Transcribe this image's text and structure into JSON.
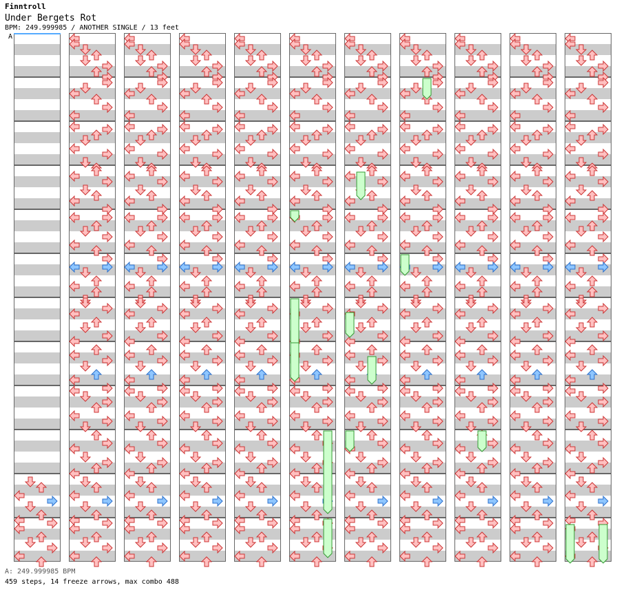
{
  "header": {
    "artist": "Finntroll",
    "title": "Under Bergets Rot",
    "meta": "BPM: 249.999985 / ANOTHER SINGLE / 13 feet",
    "marker": "A"
  },
  "footer": {
    "bpm_line": "A: 249.999985 BPM",
    "stats": "459 steps, 14 freeze arrows, max combo 488"
  },
  "colors": {
    "band": "#cccccc",
    "border": "#666666",
    "arrow_red_fill": "#ffc0c0",
    "arrow_red_stroke": "#cc3333",
    "arrow_blue_fill": "#8ec6ff",
    "arrow_blue_stroke": "#2a6fcc",
    "freeze_fill": "#ccffcc",
    "freeze_stroke": "#339933",
    "marker_line": "#55aaff"
  },
  "chart_data": {
    "type": "table",
    "columns": 11,
    "measures_per_column": 12,
    "lanes": [
      "left",
      "down",
      "up",
      "right"
    ],
    "notes": [
      [
        10,
        0,
        0,
        "r"
      ],
      [
        12,
        1,
        0,
        "r"
      ],
      [
        14,
        0,
        0,
        "r"
      ],
      [
        15,
        0,
        0,
        "r"
      ],
      [
        15,
        3,
        0,
        "r"
      ],
      [
        14,
        3,
        1,
        "r"
      ],
      [
        14,
        2,
        1,
        "r"
      ],
      [
        1,
        1,
        0,
        "r"
      ],
      [
        3,
        3,
        0,
        "r"
      ],
      [
        6,
        0,
        0,
        "r"
      ],
      [
        9,
        1,
        0,
        "r"
      ],
      [
        10,
        3,
        0,
        "r"
      ],
      [
        0,
        0,
        0,
        "r"
      ],
      [
        2,
        3,
        0,
        "r"
      ],
      [
        4,
        1,
        0,
        "r"
      ],
      [
        6,
        0,
        0,
        "r"
      ],
      [
        9,
        2,
        0,
        "r"
      ],
      [
        12,
        0,
        0,
        "r"
      ],
      [
        3,
        1,
        0,
        "b"
      ],
      [
        5,
        2,
        0,
        "r"
      ],
      [
        7,
        3,
        0,
        "r"
      ],
      [
        10,
        2,
        0,
        "r"
      ],
      [
        13,
        1,
        0,
        "r"
      ],
      [
        1,
        3,
        1,
        "r"
      ],
      [
        4,
        0,
        0,
        "r"
      ],
      [
        6,
        1,
        0,
        "r"
      ],
      [
        8,
        3,
        0,
        "r"
      ],
      [
        11,
        0,
        0,
        "r"
      ],
      [
        14,
        2,
        0,
        "r"
      ],
      [
        2,
        0,
        0,
        "r"
      ],
      [
        2,
        3,
        0,
        "r"
      ],
      [
        5,
        1,
        0,
        "r"
      ],
      [
        7,
        2,
        0,
        "r"
      ],
      [
        10,
        0,
        1,
        "r"
      ],
      [
        12,
        3,
        0,
        "r"
      ],
      [
        0,
        3,
        0,
        "r"
      ],
      [
        3,
        0,
        0,
        "b"
      ],
      [
        3,
        3,
        0,
        "b"
      ],
      [
        6,
        2,
        0,
        "r"
      ],
      [
        9,
        0,
        0,
        "r"
      ],
      [
        12,
        1,
        0,
        "b"
      ],
      [
        14,
        3,
        0,
        "r"
      ],
      [
        1,
        0,
        0,
        "r"
      ],
      [
        4,
        2,
        0,
        "r"
      ],
      [
        6,
        3,
        0,
        "b"
      ],
      [
        9,
        1,
        0,
        "r"
      ],
      [
        11,
        3,
        0,
        "r"
      ],
      [
        14,
        0,
        0,
        "b"
      ],
      [
        2,
        1,
        0,
        "b"
      ],
      [
        4,
        3,
        1,
        "r"
      ],
      [
        7,
        2,
        0,
        "r"
      ],
      [
        10,
        0,
        0,
        "r"
      ],
      [
        12,
        2,
        0,
        "r"
      ],
      [
        15,
        3,
        0,
        "r"
      ],
      [
        0,
        0,
        0,
        "r"
      ],
      [
        3,
        2,
        0,
        "r"
      ],
      [
        5,
        0,
        0,
        "r"
      ],
      [
        7,
        3,
        0,
        "r"
      ],
      [
        10,
        1,
        0,
        "r"
      ],
      [
        13,
        2,
        1,
        "r"
      ],
      [
        1,
        1,
        0,
        "r"
      ],
      [
        4,
        0,
        0,
        "r"
      ],
      [
        6,
        2,
        0,
        "r"
      ],
      [
        9,
        3,
        0,
        "r"
      ],
      [
        11,
        1,
        0,
        "r"
      ],
      [
        14,
        3,
        0,
        "r"
      ],
      [
        2,
        3,
        0,
        "r"
      ],
      [
        5,
        1,
        0,
        "r"
      ],
      [
        7,
        0,
        0,
        "r"
      ],
      [
        10,
        2,
        0,
        "r"
      ],
      [
        12,
        0,
        0,
        "r"
      ],
      [
        15,
        1,
        0,
        "r"
      ],
      [
        0,
        1,
        0,
        "r"
      ],
      [
        3,
        3,
        0,
        "r"
      ],
      [
        6,
        0,
        0,
        "r"
      ],
      [
        8,
        2,
        0,
        "r"
      ],
      [
        11,
        3,
        0,
        "r"
      ],
      [
        13,
        0,
        0,
        "r"
      ],
      [
        1,
        0,
        0,
        "r"
      ],
      [
        2,
        3,
        0,
        "r"
      ],
      [
        5,
        2,
        0,
        "b"
      ],
      [
        8,
        1,
        0,
        "r"
      ],
      [
        10,
        3,
        0,
        "r"
      ],
      [
        13,
        0,
        0,
        "r"
      ],
      [
        0,
        2,
        0,
        "r"
      ],
      [
        3,
        1,
        0,
        "r"
      ],
      [
        4,
        0,
        0,
        "r"
      ],
      [
        7,
        3,
        0,
        "r"
      ],
      [
        9,
        2,
        0,
        "r"
      ],
      [
        12,
        1,
        0,
        "r"
      ],
      [
        14,
        3,
        0,
        "r"
      ]
    ],
    "freeze_notes": [],
    "notes_by_measure": [
      [
        [
          0,
          0,
          "r"
        ],
        [
          2,
          0,
          "r"
        ],
        [
          4,
          1,
          "r"
        ],
        [
          6,
          2,
          "r"
        ],
        [
          8,
          1,
          "r"
        ],
        [
          10,
          3,
          "r"
        ],
        [
          12,
          2,
          "r"
        ],
        [
          14,
          3,
          "r"
        ]
      ],
      [
        [
          0,
          3,
          "r"
        ],
        [
          2,
          1,
          "r"
        ],
        [
          4,
          0,
          "r"
        ],
        [
          6,
          2,
          "r"
        ],
        [
          9,
          3,
          "r"
        ],
        [
          12,
          0,
          "r"
        ]
      ],
      [
        [
          0,
          0,
          "r"
        ],
        [
          1,
          3,
          "r"
        ],
        [
          3,
          2,
          "r"
        ],
        [
          5,
          1,
          "r"
        ],
        [
          8,
          0,
          "r"
        ],
        [
          10,
          3,
          "r"
        ],
        [
          13,
          1,
          "r"
        ],
        [
          15,
          2,
          "r"
        ]
      ],
      [
        [
          0,
          2,
          "r"
        ],
        [
          2,
          0,
          "r"
        ],
        [
          4,
          3,
          "r"
        ],
        [
          7,
          1,
          "r"
        ],
        [
          9,
          2,
          "r"
        ],
        [
          11,
          0,
          "r"
        ],
        [
          14,
          3,
          "r"
        ]
      ],
      [
        [
          1,
          0,
          "r"
        ],
        [
          1,
          3,
          "r"
        ],
        [
          4,
          2,
          "r"
        ],
        [
          6,
          1,
          "r"
        ],
        [
          8,
          3,
          "r"
        ],
        [
          11,
          0,
          "r"
        ],
        [
          13,
          2,
          "r"
        ]
      ],
      [
        [
          0,
          3,
          "r"
        ],
        [
          3,
          0,
          "b"
        ],
        [
          3,
          3,
          "b"
        ],
        [
          5,
          1,
          "r"
        ],
        [
          8,
          2,
          "r"
        ],
        [
          10,
          0,
          "r"
        ],
        [
          12,
          2,
          "r"
        ],
        [
          15,
          1,
          "r"
        ]
      ],
      [
        [
          0,
          1,
          "r"
        ],
        [
          2,
          3,
          "r"
        ],
        [
          4,
          0,
          "r"
        ],
        [
          7,
          2,
          "r"
        ],
        [
          9,
          1,
          "r"
        ],
        [
          12,
          3,
          "r"
        ],
        [
          14,
          0,
          "r"
        ]
      ],
      [
        [
          1,
          2,
          "r"
        ],
        [
          3,
          0,
          "r"
        ],
        [
          5,
          3,
          "r"
        ],
        [
          7,
          1,
          "r"
        ],
        [
          10,
          2,
          "b"
        ],
        [
          12,
          0,
          "r"
        ],
        [
          15,
          3,
          "r"
        ]
      ],
      [
        [
          0,
          0,
          "r"
        ],
        [
          2,
          1,
          "r"
        ],
        [
          4,
          3,
          "r"
        ],
        [
          6,
          2,
          "r"
        ],
        [
          9,
          0,
          "r"
        ],
        [
          11,
          3,
          "r"
        ],
        [
          13,
          1,
          "r"
        ]
      ],
      [
        [
          0,
          2,
          "r"
        ],
        [
          3,
          3,
          "r"
        ],
        [
          5,
          0,
          "r"
        ],
        [
          8,
          1,
          "r"
        ],
        [
          10,
          3,
          "r"
        ],
        [
          12,
          2,
          "r"
        ],
        [
          14,
          0,
          "r"
        ]
      ],
      [
        [
          1,
          1,
          "r"
        ],
        [
          3,
          2,
          "r"
        ],
        [
          6,
          0,
          "r"
        ],
        [
          8,
          3,
          "b"
        ],
        [
          10,
          1,
          "r"
        ],
        [
          13,
          2,
          "r"
        ],
        [
          15,
          0,
          "r"
        ]
      ],
      [
        [
          0,
          3,
          "r"
        ],
        [
          2,
          0,
          "r"
        ],
        [
          5,
          2,
          "r"
        ],
        [
          7,
          1,
          "r"
        ],
        [
          9,
          3,
          "r"
        ],
        [
          12,
          0,
          "r"
        ],
        [
          14,
          2,
          "r"
        ]
      ]
    ]
  }
}
